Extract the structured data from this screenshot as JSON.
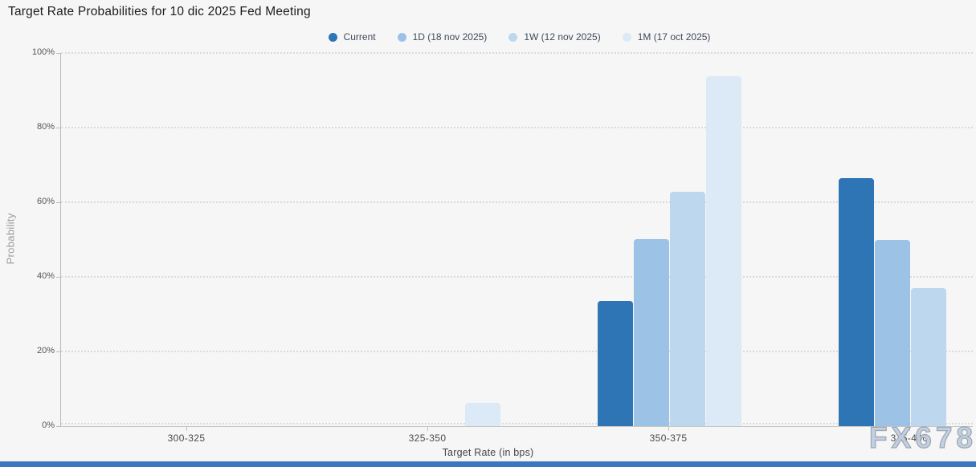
{
  "page": {
    "background": "#f6f6f7",
    "bottom_bar_color": "#3b77c1",
    "watermark": "FX678"
  },
  "chart_data": {
    "type": "bar",
    "title": "Target Rate Probabilities for 10 dic 2025 Fed Meeting",
    "xlabel": "Target Rate (in bps)",
    "ylabel": "Probability",
    "categories": [
      "300-325",
      "325-350",
      "350-375",
      "375-400"
    ],
    "series": [
      {
        "name": "Current",
        "color": "#2e75b5",
        "values": [
          0,
          0,
          33.5,
          66.5
        ]
      },
      {
        "name": "1D (18 nov 2025)",
        "color": "#9cc2e5",
        "values": [
          0,
          0,
          50.2,
          49.8
        ]
      },
      {
        "name": "1W (12 nov 2025)",
        "color": "#bdd7ee",
        "values": [
          0,
          0,
          62.9,
          37.1
        ]
      },
      {
        "name": "1M (17 oct 2025)",
        "color": "#dce9f6",
        "values": [
          0,
          6.3,
          93.7,
          0
        ]
      }
    ],
    "ylim": [
      0,
      100
    ],
    "yticks": [
      "0%",
      "20%",
      "40%",
      "60%",
      "80%",
      "100%"
    ],
    "grid": "horizontal-dotted",
    "legend_position": "top"
  }
}
